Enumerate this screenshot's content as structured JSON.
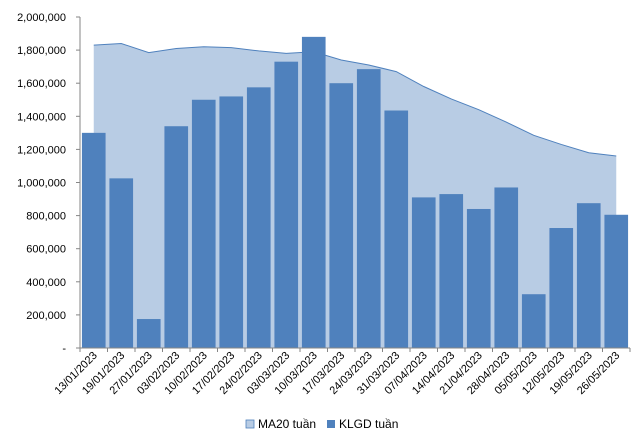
{
  "chart_data": {
    "type": "bar",
    "title": "",
    "xlabel": "",
    "ylabel": "",
    "ylim": [
      0,
      2000000
    ],
    "y_ticks": [
      0,
      200000,
      400000,
      600000,
      800000,
      1000000,
      1200000,
      1400000,
      1600000,
      1800000,
      2000000
    ],
    "y_tick_labels": [
      "-",
      "200,000",
      "400,000",
      "600,000",
      "800,000",
      "1,000,000",
      "1,200,000",
      "1,400,000",
      "1,600,000",
      "1,800,000",
      "2,000,000"
    ],
    "categories": [
      "13/01/2023",
      "19/01/2023",
      "27/01/2023",
      "03/02/2023",
      "10/02/2023",
      "17/02/2023",
      "24/02/2023",
      "03/03/2023",
      "10/03/2023",
      "17/03/2023",
      "24/03/2023",
      "31/03/2023",
      "07/04/2023",
      "14/04/2023",
      "21/04/2023",
      "28/04/2023",
      "05/05/2023",
      "12/05/2023",
      "19/05/2023",
      "26/05/2023"
    ],
    "series": [
      {
        "name": "MA20 tuần",
        "kind": "area",
        "color": "#b8cce4",
        "edge_color": "#4f81bd",
        "values": [
          1830000,
          1840000,
          1785000,
          1810000,
          1820000,
          1815000,
          1795000,
          1780000,
          1790000,
          1740000,
          1710000,
          1670000,
          1580000,
          1505000,
          1440000,
          1365000,
          1285000,
          1230000,
          1180000,
          1160000
        ]
      },
      {
        "name": "KLGD tuần",
        "kind": "bar",
        "color": "#4f81bd",
        "values": [
          1300000,
          1025000,
          175000,
          1340000,
          1500000,
          1520000,
          1575000,
          1730000,
          1880000,
          1600000,
          1685000,
          1435000,
          910000,
          930000,
          840000,
          970000,
          325000,
          725000,
          875000,
          805000
        ]
      }
    ],
    "grid": false,
    "legend": "bottom"
  }
}
